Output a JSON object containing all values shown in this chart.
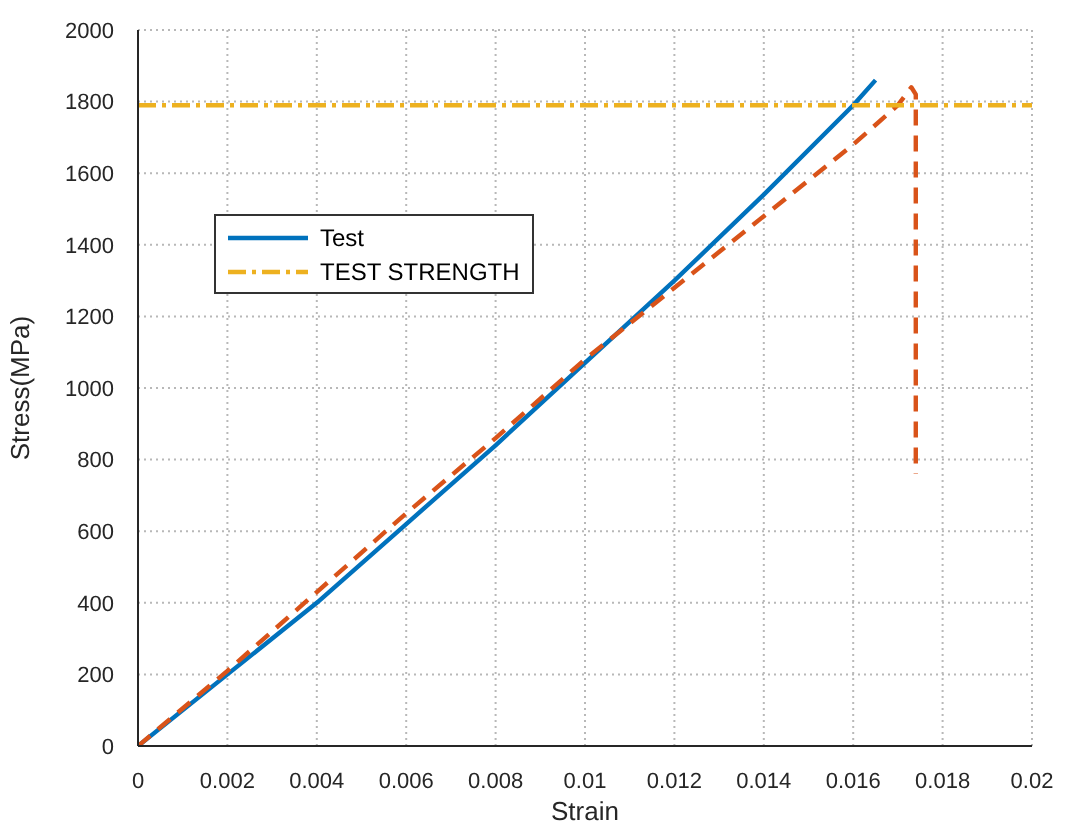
{
  "chart_data": {
    "type": "line",
    "xlabel": "Strain",
    "ylabel": "Stress(MPa)",
    "xlim": [
      0,
      0.02
    ],
    "xticks": [
      0,
      0.002,
      0.004,
      0.006,
      0.008,
      0.01,
      0.012,
      0.014,
      0.016,
      0.018,
      0.02
    ],
    "ylim": [
      0,
      2000
    ],
    "yticks": [
      0,
      200,
      400,
      600,
      800,
      1000,
      1200,
      1400,
      1600,
      1800,
      2000
    ],
    "grid": true,
    "legend": "left",
    "series": [
      {
        "name": "Test",
        "color": "#0072bd",
        "line_style": "solid",
        "x": [
          0,
          0.002,
          0.004,
          0.006,
          0.008,
          0.01,
          0.012,
          0.014,
          0.016,
          0.0165
        ],
        "values": [
          0,
          200,
          400,
          620,
          840,
          1070,
          1300,
          1540,
          1790,
          1860
        ]
      },
      {
        "color": "#d95319",
        "line_style": "dashed",
        "x": [
          0,
          0.002,
          0.004,
          0.006,
          0.008,
          0.01,
          0.012,
          0.014,
          0.016,
          0.017,
          0.0173,
          0.0174,
          0.0174
        ],
        "values": [
          0,
          210,
          430,
          650,
          860,
          1080,
          1280,
          1480,
          1680,
          1790,
          1840,
          1820,
          760
        ]
      },
      {
        "name": "TEST STRENGTH",
        "color": "#edb120",
        "line_style": "dashdot",
        "x": [
          0,
          0.02
        ],
        "values": [
          1790,
          1790
        ]
      }
    ]
  }
}
